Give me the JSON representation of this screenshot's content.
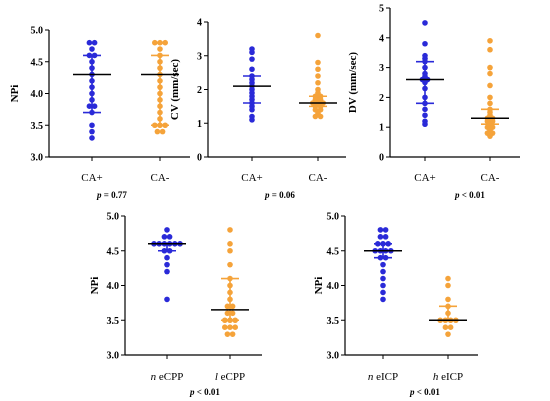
{
  "chart_data": [
    {
      "type": "scatter",
      "ylabel": "NPi",
      "ylim": [
        3.0,
        5.0
      ],
      "yticks": [
        "3.0",
        "3.5",
        "4.0",
        "4.5",
        "5.0"
      ],
      "categories": [
        "CA+",
        "CA-"
      ],
      "pvalue": {
        "prefix": "p",
        "text": " = 0.77"
      },
      "series": [
        {
          "color": "#2a2ad8",
          "median": 4.3,
          "q1": 3.7,
          "q3": 4.6,
          "values": [
            4.8,
            4.8,
            4.7,
            4.6,
            4.6,
            4.5,
            4.4,
            4.3,
            4.2,
            4.1,
            4.0,
            3.9,
            3.8,
            3.8,
            3.7,
            3.5,
            3.4,
            3.3
          ]
        },
        {
          "color": "#f5a33a",
          "median": 4.3,
          "q1": 3.5,
          "q3": 4.6,
          "values": [
            4.8,
            4.8,
            4.8,
            4.7,
            4.6,
            4.5,
            4.4,
            4.3,
            4.2,
            4.1,
            4.0,
            3.9,
            3.8,
            3.7,
            3.6,
            3.5,
            3.5,
            3.5,
            3.4,
            3.4
          ]
        }
      ]
    },
    {
      "type": "scatter",
      "ylabel": "CV (mm/sec)",
      "ylim": [
        0,
        4
      ],
      "yticks": [
        "0",
        "1",
        "2",
        "3",
        "4"
      ],
      "categories": [
        "CA+",
        "CA-"
      ],
      "pvalue": {
        "prefix": "p",
        "text": " = 0.06"
      },
      "series": [
        {
          "color": "#2a2ad8",
          "median": 2.1,
          "q1": 1.6,
          "q3": 2.4,
          "values": [
            3.2,
            3.1,
            2.9,
            2.6,
            2.4,
            2.3,
            2.2,
            2.1,
            2.0,
            1.9,
            1.8,
            1.7,
            1.6,
            1.5,
            1.4,
            1.2,
            1.1
          ]
        },
        {
          "color": "#f5a33a",
          "median": 1.6,
          "q1": 1.5,
          "q3": 1.8,
          "values": [
            3.6,
            2.8,
            2.6,
            2.4,
            2.2,
            2.0,
            1.9,
            1.8,
            1.8,
            1.7,
            1.7,
            1.6,
            1.6,
            1.6,
            1.5,
            1.5,
            1.4,
            1.4,
            1.3,
            1.2,
            1.2
          ]
        }
      ]
    },
    {
      "type": "scatter",
      "ylabel": "DV (mm/sec)",
      "ylim": [
        0,
        5
      ],
      "yticks": [
        "0",
        "1",
        "2",
        "3",
        "4",
        "5"
      ],
      "categories": [
        "CA+",
        "CA-"
      ],
      "pvalue": {
        "prefix": "p",
        "text": " < 0.01"
      },
      "series": [
        {
          "color": "#2a2ad8",
          "median": 2.6,
          "q1": 1.8,
          "q3": 3.2,
          "values": [
            4.5,
            3.8,
            3.4,
            3.3,
            3.2,
            3.0,
            2.8,
            2.7,
            2.6,
            2.6,
            2.5,
            2.3,
            2.0,
            1.8,
            1.6,
            1.4,
            1.2,
            1.1
          ]
        },
        {
          "color": "#f5a33a",
          "median": 1.3,
          "q1": 1.1,
          "q3": 1.6,
          "values": [
            3.9,
            3.6,
            3.0,
            2.8,
            2.4,
            2.0,
            1.8,
            1.6,
            1.5,
            1.4,
            1.3,
            1.3,
            1.2,
            1.2,
            1.1,
            1.0,
            1.0,
            0.9,
            0.8,
            0.8,
            0.7
          ]
        }
      ]
    },
    {
      "type": "scatter",
      "ylabel": "NPi",
      "ylim": [
        3.0,
        5.0
      ],
      "yticks": [
        "3.0",
        "3.5",
        "4.0",
        "4.5",
        "5.0"
      ],
      "categories": [
        {
          "prefix": "n",
          "text": " eCPP"
        },
        {
          "prefix": "l",
          "text": " eCPP"
        }
      ],
      "pvalue": {
        "prefix": "p",
        "text": " < 0.01"
      },
      "series": [
        {
          "color": "#2a2ad8",
          "median": 4.6,
          "q1": 4.5,
          "q3": 4.6,
          "values": [
            4.8,
            4.7,
            4.7,
            4.6,
            4.6,
            4.6,
            4.6,
            4.6,
            4.6,
            4.5,
            4.5,
            4.4,
            4.3,
            4.2,
            3.8
          ]
        },
        {
          "color": "#f5a33a",
          "median": 3.65,
          "q1": 3.5,
          "q3": 4.1,
          "values": [
            4.8,
            4.6,
            4.5,
            4.3,
            4.1,
            4.0,
            3.9,
            3.8,
            3.7,
            3.7,
            3.6,
            3.6,
            3.5,
            3.5,
            3.5,
            3.4,
            3.4,
            3.4,
            3.3,
            3.3
          ]
        }
      ]
    },
    {
      "type": "scatter",
      "ylabel": "NPi",
      "ylim": [
        3.0,
        5.0
      ],
      "yticks": [
        "3.0",
        "3.5",
        "4.0",
        "4.5",
        "5.0"
      ],
      "categories": [
        {
          "prefix": "n",
          "text": " eICP"
        },
        {
          "prefix": "h",
          "text": " eICP"
        }
      ],
      "pvalue": {
        "prefix": "p",
        "text": " < 0.01"
      },
      "series": [
        {
          "color": "#2a2ad8",
          "median": 4.5,
          "q1": 4.4,
          "q3": 4.6,
          "values": [
            4.8,
            4.8,
            4.7,
            4.7,
            4.6,
            4.6,
            4.6,
            4.5,
            4.5,
            4.5,
            4.5,
            4.4,
            4.4,
            4.3,
            4.2,
            4.1,
            4.0,
            3.9,
            3.8
          ]
        },
        {
          "color": "#f5a33a",
          "median": 3.5,
          "q1": 3.5,
          "q3": 3.7,
          "values": [
            4.1,
            4.0,
            3.8,
            3.7,
            3.6,
            3.5,
            3.5,
            3.5,
            3.5,
            3.4,
            3.4,
            3.3
          ]
        }
      ]
    }
  ]
}
